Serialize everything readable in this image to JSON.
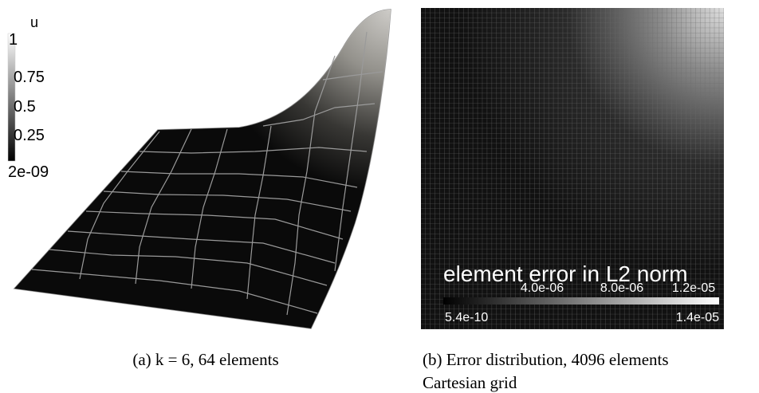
{
  "left_panel": {
    "colorbar": {
      "title": "u",
      "labels": [
        "1",
        "0.75",
        "0.5",
        "0.25",
        "2e-09"
      ]
    },
    "caption": "(a) k = 6, 64 elements"
  },
  "right_panel": {
    "colorbar": {
      "title": "element error in L2 norm",
      "upper_labels": [
        "4.0e-06",
        "8.0e-06",
        "1.2e-05"
      ],
      "lower_labels": [
        "5.4e-10",
        "1.4e-05"
      ]
    },
    "caption": [
      "(b) Error distribution, 4096 elements",
      "Cartesian grid"
    ]
  }
}
